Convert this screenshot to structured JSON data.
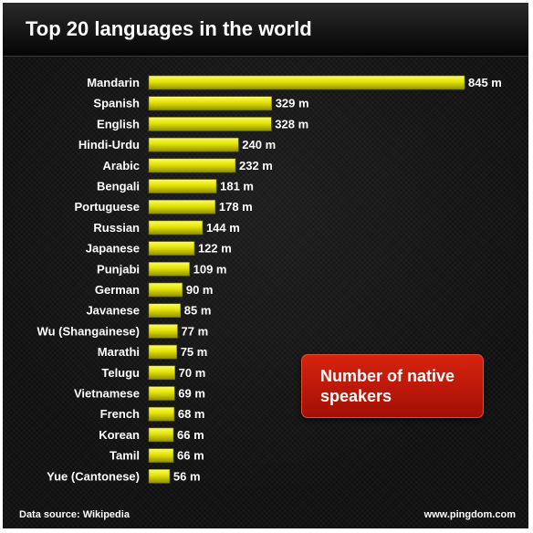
{
  "header": {
    "title": "Top 20 languages in the world"
  },
  "callout": {
    "text": "Number of native speakers"
  },
  "footer": {
    "source": "Data source: Wikipedia",
    "site": "www.pingdom.com"
  },
  "colors": {
    "bar": "#e6e600",
    "callout": "#c41a0a",
    "background": "#141414"
  },
  "chart_data": {
    "type": "bar",
    "orientation": "horizontal",
    "title": "Top 20 languages in the world",
    "categories": [
      "Mandarin",
      "Spanish",
      "English",
      "Hindi-Urdu",
      "Arabic",
      "Bengali",
      "Portuguese",
      "Russian",
      "Japanese",
      "Punjabi",
      "German",
      "Javanese",
      "Wu (Shangainese)",
      "Marathi",
      "Telugu",
      "Vietnamese",
      "French",
      "Korean",
      "Tamil",
      "Yue (Cantonese)"
    ],
    "values": [
      845,
      329,
      328,
      240,
      232,
      181,
      178,
      144,
      122,
      109,
      90,
      85,
      77,
      75,
      70,
      69,
      68,
      66,
      66,
      56
    ],
    "value_labels": [
      "845 m",
      "329 m",
      "328 m",
      "240 m",
      "232 m",
      "181 m",
      "178 m",
      "144 m",
      "122 m",
      "109 m",
      "90 m",
      "85 m",
      "77 m",
      "75 m",
      "70 m",
      "69 m",
      "68 m",
      "66 m",
      "66 m",
      "56 m"
    ],
    "unit": "m",
    "xlim": [
      0,
      845
    ],
    "grid": false,
    "legend": "none"
  }
}
